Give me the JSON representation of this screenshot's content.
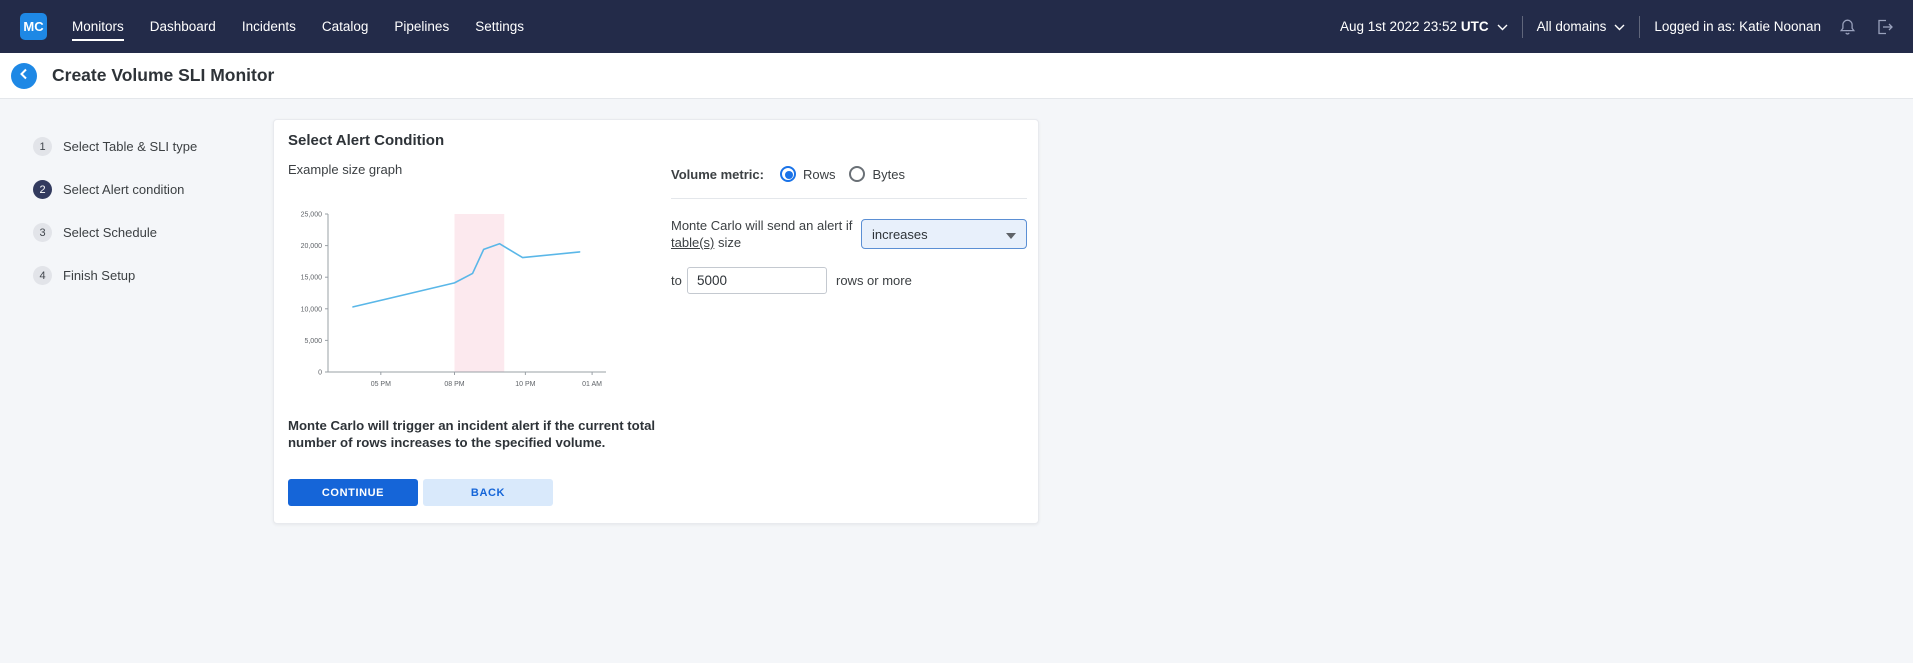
{
  "colors": {
    "nav_bg": "#232b49",
    "accent_blue": "#1565d8",
    "logo_blue": "#1e88e5",
    "chart_line": "#5ab7e8",
    "highlight_band": "#fce9ee",
    "back_button_light": "#d9e9fb"
  },
  "icons": {
    "logo": "mc-logo",
    "date_chevron": "chevron-down-icon",
    "domains_chevron": "chevron-down-icon",
    "notifications": "bell-icon",
    "logout": "logout-icon",
    "back": "chevron-left-icon",
    "select_caret": "chevron-down-icon"
  },
  "topnav": {
    "logo": "MC",
    "items": [
      {
        "label": "Monitors",
        "active": true
      },
      {
        "label": "Dashboard",
        "active": false
      },
      {
        "label": "Incidents",
        "active": false
      },
      {
        "label": "Catalog",
        "active": false
      },
      {
        "label": "Pipelines",
        "active": false
      },
      {
        "label": "Settings",
        "active": false
      }
    ],
    "datetime": "Aug 1st 2022 23:52",
    "timezone": "UTC",
    "domain_selector": "All domains",
    "user": "Logged in as: Katie Noonan"
  },
  "header": {
    "title": "Create Volume SLI Monitor"
  },
  "stepper": [
    {
      "number": "1",
      "label": "Select Table & SLI type",
      "active": false
    },
    {
      "number": "2",
      "label": "Select Alert condition",
      "active": true
    },
    {
      "number": "3",
      "label": "Select Schedule",
      "active": false
    },
    {
      "number": "4",
      "label": "Finish Setup",
      "active": false
    }
  ],
  "card": {
    "title": "Select Alert Condition",
    "graph_label": "Example size graph",
    "volume_metric_label": "Volume metric:",
    "radios": [
      {
        "label": "Rows",
        "selected": true
      },
      {
        "label": "Bytes",
        "selected": false
      }
    ],
    "alert_sentence_1": "Monte Carlo will send an alert if",
    "alert_link": "table(s)",
    "alert_sentence_2": " size",
    "dropdown_value": "increases",
    "to_label": "to",
    "threshold_value": "5000",
    "threshold_suffix": "rows or more",
    "description": "Monte Carlo will trigger an incident alert if the current total number of rows increases to the specified volume.",
    "continue_label": "CONTINUE",
    "back_label": "BACK"
  },
  "chart_data": {
    "type": "line",
    "title": "Example size graph",
    "xlabel": "",
    "ylabel": "",
    "ylim": [
      0,
      25000
    ],
    "grid": false,
    "legend": false,
    "y_ticks": [
      {
        "value": 0,
        "label": "0"
      },
      {
        "value": 5000,
        "label": "5,000"
      },
      {
        "value": 10000,
        "label": "10,000"
      },
      {
        "value": 15000,
        "label": "15,000"
      },
      {
        "value": 20000,
        "label": "20,000"
      },
      {
        "value": 25000,
        "label": "25,000"
      }
    ],
    "x_ticks": [
      {
        "pos": 0.19,
        "label": "05 PM"
      },
      {
        "pos": 0.455,
        "label": "08 PM"
      },
      {
        "pos": 0.71,
        "label": "10 PM"
      },
      {
        "pos": 0.95,
        "label": "01 AM"
      }
    ],
    "points": [
      {
        "x": 0.09,
        "y": 10300
      },
      {
        "x": 0.455,
        "y": 14100
      },
      {
        "x": 0.52,
        "y": 15600
      },
      {
        "x": 0.56,
        "y": 19400
      },
      {
        "x": 0.617,
        "y": 20300
      },
      {
        "x": 0.7,
        "y": 18100
      },
      {
        "x": 0.905,
        "y": 19000
      }
    ],
    "highlight_band": {
      "from": 0.455,
      "to": 0.634,
      "color": "#fce9ee"
    },
    "line_color": "#5ab7e8"
  }
}
